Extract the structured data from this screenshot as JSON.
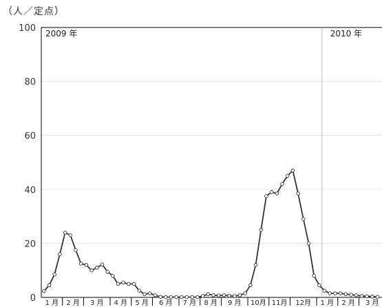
{
  "chart_data": {
    "type": "line",
    "unit_label": "（人／定点）",
    "ylim": [
      0,
      100
    ],
    "yticks": [
      0,
      20,
      40,
      60,
      80,
      100
    ],
    "grid": true,
    "x_axis": {
      "year_labels": [
        "2009 年",
        "2010 年"
      ],
      "month_labels": [
        "1 月",
        "2 月",
        "3 月",
        "4 月",
        "5 月",
        "6 月",
        "7 月",
        "8 月",
        "9 月",
        "10月",
        "11月",
        "12月",
        "1 月",
        "2 月",
        "3 月"
      ],
      "weeks_per_month": [
        4,
        4,
        5,
        4,
        4,
        5,
        4,
        4,
        5,
        4,
        4,
        5,
        4,
        4,
        5
      ],
      "year_boundary_week": 53
    },
    "series": [
      {
        "color": "#333333",
        "values": [
          2.3,
          4.5,
          8.5,
          16,
          24,
          23,
          17.5,
          12.5,
          12,
          10,
          11,
          12.2,
          9.5,
          8,
          5,
          5.5,
          5,
          5,
          2.5,
          1.2,
          1.5,
          0.8,
          0.2,
          0.1,
          0.1,
          0.1,
          0.1,
          0.1,
          0.1,
          0.1,
          0.5,
          1.2,
          0.8,
          0.7,
          0.8,
          0.6,
          0.5,
          0.8,
          1.5,
          4.5,
          12,
          25,
          37.5,
          39,
          38.5,
          42,
          45,
          47,
          38.5,
          29,
          20,
          8,
          4.5,
          2.5,
          1.5,
          1.5,
          1.5,
          1.2,
          1,
          0.8,
          0.5,
          0.4,
          0.3,
          0.2
        ]
      }
    ]
  }
}
